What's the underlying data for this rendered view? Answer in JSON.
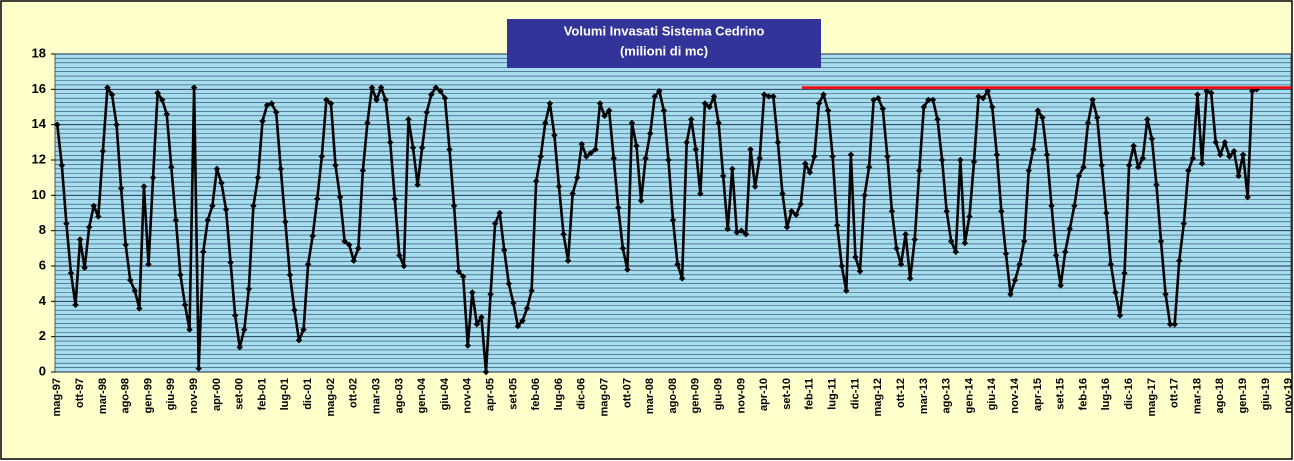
{
  "chart_data": {
    "type": "line",
    "title": "Volumi Invasati Sistema Cedrino",
    "subtitle": "(milioni di mc)",
    "categories": [
      "mag-97",
      null,
      null,
      null,
      null,
      "ott-97",
      null,
      null,
      null,
      null,
      "mar-98",
      null,
      null,
      null,
      null,
      "ago-98",
      null,
      null,
      null,
      null,
      "gen-99",
      null,
      null,
      null,
      null,
      "giu-99",
      null,
      null,
      null,
      null,
      "nov-99",
      null,
      null,
      null,
      null,
      "apr-00",
      null,
      null,
      null,
      null,
      "set-00",
      null,
      null,
      null,
      null,
      "feb-01",
      null,
      null,
      null,
      null,
      "lug-01",
      null,
      null,
      null,
      null,
      "dic-01",
      null,
      null,
      null,
      null,
      "mag-02",
      null,
      null,
      null,
      null,
      "ott-02",
      null,
      null,
      null,
      null,
      "mar-03",
      null,
      null,
      null,
      null,
      "ago-03",
      null,
      null,
      null,
      null,
      "gen-04",
      null,
      null,
      null,
      null,
      "giu-04",
      null,
      null,
      null,
      null,
      "nov-04",
      null,
      null,
      null,
      null,
      "apr-05",
      null,
      null,
      null,
      null,
      "set-05",
      null,
      null,
      null,
      null,
      "feb-06",
      null,
      null,
      null,
      null,
      "lug-06",
      null,
      null,
      null,
      null,
      "dic-06",
      null,
      null,
      null,
      null,
      "mag-07",
      null,
      null,
      null,
      null,
      "ott-07",
      null,
      null,
      null,
      null,
      "mar-08",
      null,
      null,
      null,
      null,
      "ago-08",
      null,
      null,
      null,
      null,
      "gen-09",
      null,
      null,
      null,
      null,
      "giu-09",
      null,
      null,
      null,
      null,
      "nov-09",
      null,
      null,
      null,
      null,
      "apr-10",
      null,
      null,
      null,
      null,
      "set-10",
      null,
      null,
      null,
      null,
      "feb-11",
      null,
      null,
      null,
      null,
      "lug-11",
      null,
      null,
      null,
      null,
      "dic-11",
      null,
      null,
      null,
      null,
      "mag-12",
      null,
      null,
      null,
      null,
      "ott-12",
      null,
      null,
      null,
      null,
      "mar-13",
      null,
      null,
      null,
      null,
      "ago-13",
      null,
      null,
      null,
      null,
      "gen-14",
      null,
      null,
      null,
      null,
      "giu-14",
      null,
      null,
      null,
      null,
      "nov-14",
      null,
      null,
      null,
      null,
      "apr-15",
      null,
      null,
      null,
      null,
      "set-15",
      null,
      null,
      null,
      null,
      "feb-16",
      null,
      null,
      null,
      null,
      "lug-16",
      null,
      null,
      null,
      null,
      "dic-16",
      null,
      null,
      null,
      null,
      "mag-17",
      null,
      null,
      null,
      null,
      "ott-17",
      null,
      null,
      null,
      null,
      "mar-18",
      null,
      null,
      null,
      null,
      "ago-18",
      null,
      null,
      null,
      null,
      "gen-19",
      null,
      null,
      null,
      null,
      "giu-19",
      null,
      null,
      null,
      null,
      "nov-19"
    ],
    "values": [
      14.0,
      11.7,
      8.4,
      5.6,
      3.8,
      7.5,
      5.9,
      8.2,
      9.4,
      8.8,
      12.5,
      16.1,
      15.7,
      14.0,
      10.4,
      7.2,
      5.2,
      4.6,
      3.6,
      10.5,
      6.1,
      11.0,
      15.8,
      15.4,
      14.6,
      11.6,
      8.6,
      5.5,
      3.8,
      2.4,
      16.1,
      0.2,
      6.8,
      8.6,
      9.4,
      11.5,
      10.7,
      9.2,
      6.2,
      3.2,
      1.4,
      2.4,
      4.7,
      9.4,
      11.0,
      14.2,
      15.1,
      15.2,
      14.7,
      11.5,
      8.5,
      5.5,
      3.5,
      1.8,
      2.4,
      6.1,
      7.7,
      9.8,
      12.2,
      15.4,
      15.2,
      11.7,
      9.9,
      7.4,
      7.2,
      6.3,
      7.0,
      11.4,
      14.1,
      16.1,
      15.4,
      16.1,
      15.4,
      13.0,
      9.8,
      6.6,
      6.0,
      14.3,
      12.7,
      10.6,
      12.7,
      14.7,
      15.7,
      16.1,
      15.9,
      15.5,
      12.6,
      9.4,
      5.7,
      5.4,
      1.5,
      4.5,
      2.7,
      3.1,
      0.0,
      4.4,
      8.4,
      9.0,
      6.9,
      5.0,
      3.9,
      2.6,
      2.9,
      3.6,
      4.6,
      10.8,
      12.2,
      14.1,
      15.2,
      13.4,
      10.5,
      7.8,
      6.3,
      10.1,
      11.0,
      12.9,
      12.2,
      12.4,
      12.6,
      15.2,
      14.5,
      14.8,
      12.1,
      9.3,
      7.0,
      5.8,
      14.1,
      12.8,
      9.7,
      12.1,
      13.5,
      15.6,
      15.9,
      14.8,
      12.0,
      8.6,
      6.1,
      5.3,
      13.0,
      14.3,
      12.6,
      10.1,
      15.2,
      15.0,
      15.6,
      14.1,
      11.1,
      8.1,
      11.5,
      7.9,
      8.0,
      7.8,
      12.6,
      10.5,
      12.1,
      15.7,
      15.6,
      15.6,
      13.0,
      10.1,
      8.2,
      9.1,
      8.9,
      9.5,
      11.8,
      11.3,
      12.2,
      15.2,
      15.7,
      14.8,
      12.2,
      8.3,
      6.0,
      4.6,
      12.3,
      6.5,
      5.7,
      10.0,
      11.6,
      15.4,
      15.5,
      14.9,
      12.2,
      9.1,
      7.0,
      6.1,
      7.8,
      5.3,
      7.5,
      11.4,
      15.0,
      15.4,
      15.4,
      14.3,
      12.0,
      9.1,
      7.4,
      6.8,
      12.0,
      7.3,
      8.8,
      11.9,
      15.6,
      15.5,
      15.9,
      15.0,
      12.3,
      9.1,
      6.7,
      4.4,
      5.2,
      6.1,
      7.4,
      11.4,
      12.6,
      14.8,
      14.4,
      12.3,
      9.4,
      6.6,
      4.9,
      6.8,
      8.1,
      9.4,
      11.1,
      11.6,
      14.1,
      15.4,
      14.4,
      11.7,
      9.0,
      6.1,
      4.5,
      3.2,
      5.6,
      11.7,
      12.8,
      11.6,
      12.1,
      14.3,
      13.2,
      10.6,
      7.4,
      4.4,
      2.7,
      2.7,
      6.3,
      8.4,
      11.4,
      12.1,
      15.7,
      11.8,
      15.9,
      15.8,
      13.0,
      12.3,
      13.0,
      12.2,
      12.5,
      11.1,
      12.3,
      9.9,
      15.9,
      16.0,
      null,
      null,
      null,
      null,
      null,
      null,
      null
    ],
    "color": "#000000",
    "ylim": [
      0,
      18
    ],
    "yticks": [
      0,
      2,
      4,
      6,
      8,
      10,
      12,
      14,
      16,
      18
    ],
    "grid": true,
    "minor_grid_step": 0.25,
    "reference_line": {
      "value": 16.1,
      "color": "#ff0000",
      "x_from": "feb-11"
    }
  }
}
